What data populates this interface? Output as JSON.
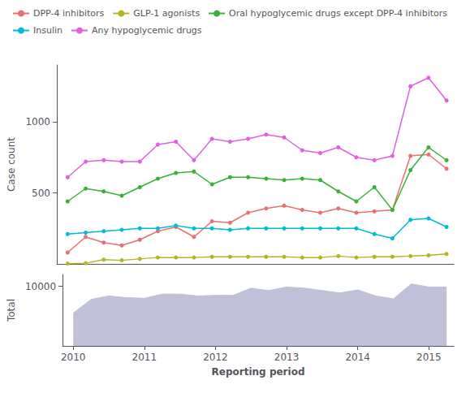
{
  "chart_data": [
    {
      "type": "line",
      "ylabel": "Case count",
      "x": [
        2010.0,
        2010.25,
        2010.5,
        2010.75,
        2011.0,
        2011.25,
        2011.5,
        2011.75,
        2012.0,
        2012.25,
        2012.5,
        2012.75,
        2013.0,
        2013.25,
        2013.5,
        2013.75,
        2014.0,
        2014.25,
        2014.5,
        2014.75,
        2015.0,
        2015.25
      ],
      "series": [
        {
          "name": "DPP-4 inhibitors",
          "color": "#e87070",
          "values": [
            80,
            190,
            150,
            130,
            170,
            230,
            260,
            190,
            300,
            290,
            360,
            390,
            410,
            380,
            360,
            390,
            360,
            370,
            380,
            760,
            770,
            670
          ]
        },
        {
          "name": "GLP-1 agonists",
          "color": "#b5b520",
          "values": [
            2,
            5,
            30,
            25,
            35,
            45,
            45,
            45,
            50,
            50,
            50,
            50,
            50,
            45,
            45,
            55,
            45,
            50,
            50,
            55,
            60,
            70
          ]
        },
        {
          "name": "Oral hypoglycemic drugs except DPP-4 inhibitors",
          "color": "#3ab03a",
          "values": [
            440,
            530,
            510,
            480,
            540,
            600,
            640,
            650,
            560,
            610,
            610,
            600,
            590,
            600,
            590,
            510,
            440,
            540,
            380,
            660,
            820,
            730
          ]
        },
        {
          "name": "Insulin",
          "color": "#00bcd4",
          "values": [
            210,
            220,
            230,
            240,
            250,
            250,
            270,
            250,
            250,
            240,
            250,
            250,
            250,
            250,
            250,
            250,
            250,
            210,
            180,
            310,
            320,
            260
          ]
        },
        {
          "name": "Any hypoglycemic drugs",
          "color": "#e060e0",
          "values": [
            610,
            720,
            730,
            720,
            720,
            840,
            860,
            730,
            880,
            860,
            880,
            910,
            890,
            800,
            780,
            820,
            750,
            730,
            760,
            1250,
            1310,
            1150
          ]
        }
      ],
      "xlim": [
        2009.85,
        2015.35
      ],
      "ylim": [
        0,
        1400
      ],
      "yticks": [
        500,
        1000
      ],
      "grid": false,
      "legend": "upper left",
      "marker": "circle",
      "tick_labels": "y"
    },
    {
      "type": "area",
      "xlabel": "Reporting period",
      "ylabel": "Total",
      "x": [
        2010.0,
        2010.25,
        2010.5,
        2010.75,
        2011.0,
        2011.25,
        2011.5,
        2011.75,
        2012.0,
        2012.25,
        2012.5,
        2012.75,
        2013.0,
        2013.25,
        2013.5,
        2013.75,
        2014.0,
        2014.25,
        2014.5,
        2014.75,
        2015.0,
        2015.25
      ],
      "values": [
        5500,
        7800,
        8400,
        8100,
        8000,
        8700,
        8700,
        8400,
        8500,
        8500,
        9700,
        9300,
        9900,
        9700,
        9300,
        8900,
        9400,
        8400,
        7900,
        10400,
        9900,
        9900
      ],
      "color": "#c0c0d8",
      "xlim": [
        2009.85,
        2015.35
      ],
      "xticks": [
        2010,
        2011,
        2012,
        2013,
        2014,
        2015
      ],
      "ylim": [
        0,
        12000
      ],
      "yticks": [
        10000
      ],
      "grid": false
    }
  ]
}
